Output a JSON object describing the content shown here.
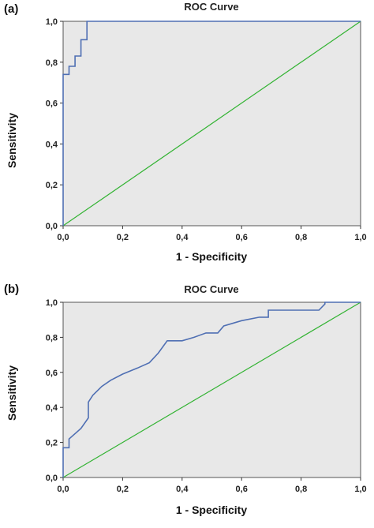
{
  "chart_data": [
    {
      "panel_label": "(a)",
      "type": "line",
      "title": "ROC Curve",
      "xlabel": "1 - Specificity",
      "ylabel": "Sensitivity",
      "xlim": [
        0,
        1
      ],
      "ylim": [
        0,
        1
      ],
      "x_ticks": [
        "0,0",
        "0,2",
        "0,4",
        "0,6",
        "0,8",
        "1,0"
      ],
      "y_ticks": [
        "0,0",
        "0,2",
        "0,4",
        "0,6",
        "0,8",
        "1,0"
      ],
      "grid": false,
      "background": "#e8e8e8",
      "series": [
        {
          "color": "#4f6fb3",
          "x": [
            0,
            0,
            0.02,
            0.02,
            0.04,
            0.04,
            0.06,
            0.06,
            0.08,
            0.08,
            1.0
          ],
          "y": [
            0,
            0.74,
            0.74,
            0.78,
            0.78,
            0.83,
            0.83,
            0.91,
            0.91,
            1.0,
            1.0
          ]
        },
        {
          "color": "#33b333",
          "x": [
            0,
            1
          ],
          "y": [
            0,
            1
          ]
        }
      ]
    },
    {
      "panel_label": "(b)",
      "type": "line",
      "title": "ROC Curve",
      "xlabel": "1 - Specificity",
      "ylabel": "Sensitivity",
      "xlim": [
        0,
        1
      ],
      "ylim": [
        0,
        1
      ],
      "x_ticks": [
        "0,0",
        "0,2",
        "0,4",
        "0,6",
        "0,8",
        "1,0"
      ],
      "y_ticks": [
        "0,0",
        "0,2",
        "0,4",
        "0,6",
        "0,8",
        "1,0"
      ],
      "grid": false,
      "background": "#e8e8e8",
      "series": [
        {
          "color": "#4f6fb3",
          "x": [
            0,
            0,
            0.02,
            0.02,
            0.06,
            0.085,
            0.085,
            0.1,
            0.13,
            0.16,
            0.2,
            0.25,
            0.29,
            0.32,
            0.35,
            0.4,
            0.44,
            0.48,
            0.52,
            0.54,
            0.6,
            0.66,
            0.69,
            0.69,
            0.86,
            0.88,
            0.88,
            1.0
          ],
          "y": [
            0,
            0.17,
            0.17,
            0.22,
            0.28,
            0.34,
            0.43,
            0.47,
            0.52,
            0.555,
            0.59,
            0.625,
            0.655,
            0.71,
            0.78,
            0.78,
            0.8,
            0.825,
            0.825,
            0.865,
            0.895,
            0.915,
            0.915,
            0.955,
            0.955,
            0.99,
            1.0,
            1.0
          ]
        },
        {
          "color": "#33b333",
          "x": [
            0,
            1
          ],
          "y": [
            0,
            1
          ]
        }
      ]
    }
  ]
}
